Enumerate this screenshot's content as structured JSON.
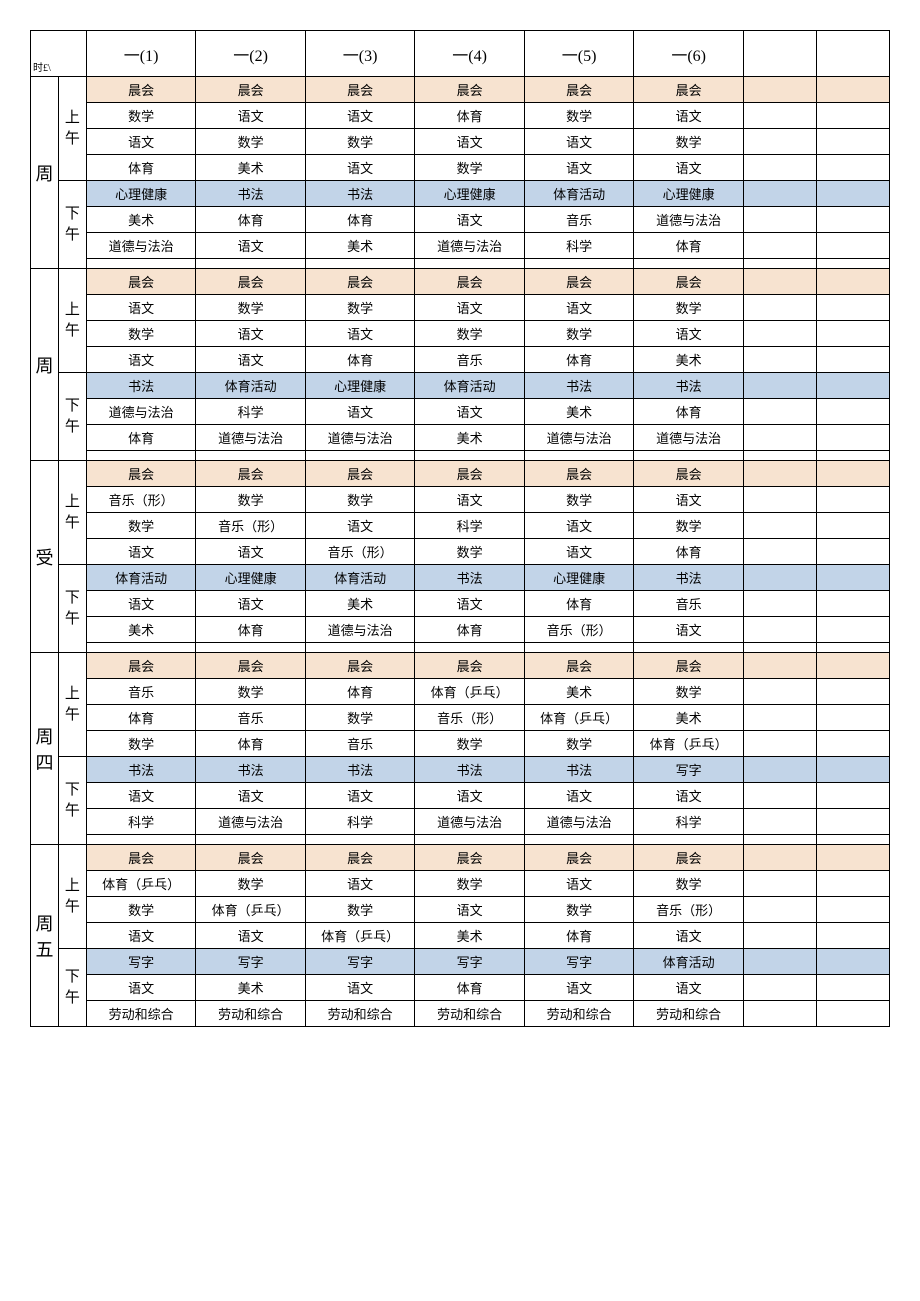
{
  "corner_label": "时£\\",
  "class_headers": [
    "一(1)",
    "一(2)",
    "一(3)",
    "一(4)",
    "一(5)",
    "一(6)"
  ],
  "extra_cols": 2,
  "colors": {
    "peach_bg": "#f7e3d0",
    "blue_bg": "#c2d4e8",
    "border": "#000000",
    "text": "#000000",
    "page_bg": "#ffffff"
  },
  "days": [
    {
      "label": "周",
      "morning": {
        "label": "上午",
        "header": [
          "晨会",
          "晨会",
          "晨会",
          "晨会",
          "晨会",
          "晨会"
        ],
        "rows": [
          [
            "数学",
            "语文",
            "语文",
            "体育",
            "数学",
            "语文"
          ],
          [
            "语文",
            "数学",
            "数学",
            "语文",
            "语文",
            "数学"
          ],
          [
            "体育",
            "美术",
            "语文",
            "数学",
            "语文",
            "语文"
          ]
        ]
      },
      "afternoon": {
        "label": "下午",
        "header": [
          "心理健康",
          "书法",
          "书法",
          "心理健康",
          "体育活动",
          "心理健康"
        ],
        "rows": [
          [
            "美术",
            "体育",
            "体育",
            "语文",
            "音乐",
            "道德与法治"
          ],
          [
            "道德与法治",
            "语文",
            "美术",
            "道德与法治",
            "科学",
            "体育"
          ]
        ]
      }
    },
    {
      "label": "周",
      "morning": {
        "label": "上午",
        "header": [
          "晨会",
          "晨会",
          "晨会",
          "晨会",
          "晨会",
          "晨会"
        ],
        "rows": [
          [
            "语文",
            "数学",
            "数学",
            "语文",
            "语文",
            "数学"
          ],
          [
            "数学",
            "语文",
            "语文",
            "数学",
            "数学",
            "语文"
          ],
          [
            "语文",
            "语文",
            "体育",
            "音乐",
            "体育",
            "美术"
          ]
        ]
      },
      "afternoon": {
        "label": "下午",
        "header": [
          "书法",
          "体育活动",
          "心理健康",
          "体育活动",
          "书法",
          "书法"
        ],
        "rows": [
          [
            "道德与法治",
            "科学",
            "语文",
            "语文",
            "美术",
            "体育"
          ],
          [
            "体育",
            "道德与法治",
            "道德与法治",
            "美术",
            "道德与法治",
            "道德与法治"
          ]
        ]
      }
    },
    {
      "label": "受",
      "morning": {
        "label": "上午",
        "header": [
          "晨会",
          "晨会",
          "晨会",
          "晨会",
          "晨会",
          "晨会"
        ],
        "rows": [
          [
            "音乐（形）",
            "数学",
            "数学",
            "语文",
            "数学",
            "语文"
          ],
          [
            "数学",
            "音乐（形）",
            "语文",
            "科学",
            "语文",
            "数学"
          ],
          [
            "语文",
            "语文",
            "音乐（形）",
            "数学",
            "语文",
            "体育"
          ]
        ]
      },
      "afternoon": {
        "label": "下午",
        "header": [
          "体育活动",
          "心理健康",
          "体育活动",
          "书法",
          "心理健康",
          "书法"
        ],
        "rows": [
          [
            "语文",
            "语文",
            "美术",
            "语文",
            "体育",
            "音乐"
          ],
          [
            "美术",
            "体育",
            "道德与法治",
            "体育",
            "音乐（形）",
            "语文"
          ]
        ]
      }
    },
    {
      "label": "周四",
      "morning": {
        "label": "上午",
        "header": [
          "晨会",
          "晨会",
          "晨会",
          "晨会",
          "晨会",
          "晨会"
        ],
        "rows": [
          [
            "音乐",
            "数学",
            "体育",
            "体育（乒乓）",
            "美术",
            "数学"
          ],
          [
            "体育",
            "音乐",
            "数学",
            "音乐（形）",
            "体育（乒乓）",
            "美术"
          ],
          [
            "数学",
            "体育",
            "音乐",
            "数学",
            "数学",
            "体育（乒乓）"
          ]
        ]
      },
      "afternoon": {
        "label": "下午",
        "header": [
          "书法",
          "书法",
          "书法",
          "书法",
          "书法",
          "写字"
        ],
        "rows": [
          [
            "语文",
            "语文",
            "语文",
            "语文",
            "语文",
            "语文"
          ],
          [
            "科学",
            "道德与法治",
            "科学",
            "道德与法治",
            "道德与法治",
            "科学"
          ]
        ]
      }
    },
    {
      "label": "周五",
      "morning": {
        "label": "上午",
        "header": [
          "晨会",
          "晨会",
          "晨会",
          "晨会",
          "晨会",
          "晨会"
        ],
        "rows": [
          [
            "体育（乒乓）",
            "数学",
            "语文",
            "数学",
            "语文",
            "数学"
          ],
          [
            "数学",
            "体育（乒乓）",
            "数学",
            "语文",
            "数学",
            "音乐（形）"
          ],
          [
            "语文",
            "语文",
            "体育（乒乓）",
            "美术",
            "体育",
            "语文"
          ]
        ]
      },
      "afternoon": {
        "label": "下午",
        "header": [
          "写字",
          "写字",
          "写字",
          "写字",
          "写字",
          "体育活动"
        ],
        "rows": [
          [
            "语文",
            "美术",
            "语文",
            "体育",
            "语文",
            "语文"
          ],
          [
            "劳动和综合",
            "劳动和综合",
            "劳动和综合",
            "劳动和综合",
            "劳动和综合",
            "劳动和综合"
          ]
        ]
      }
    }
  ]
}
